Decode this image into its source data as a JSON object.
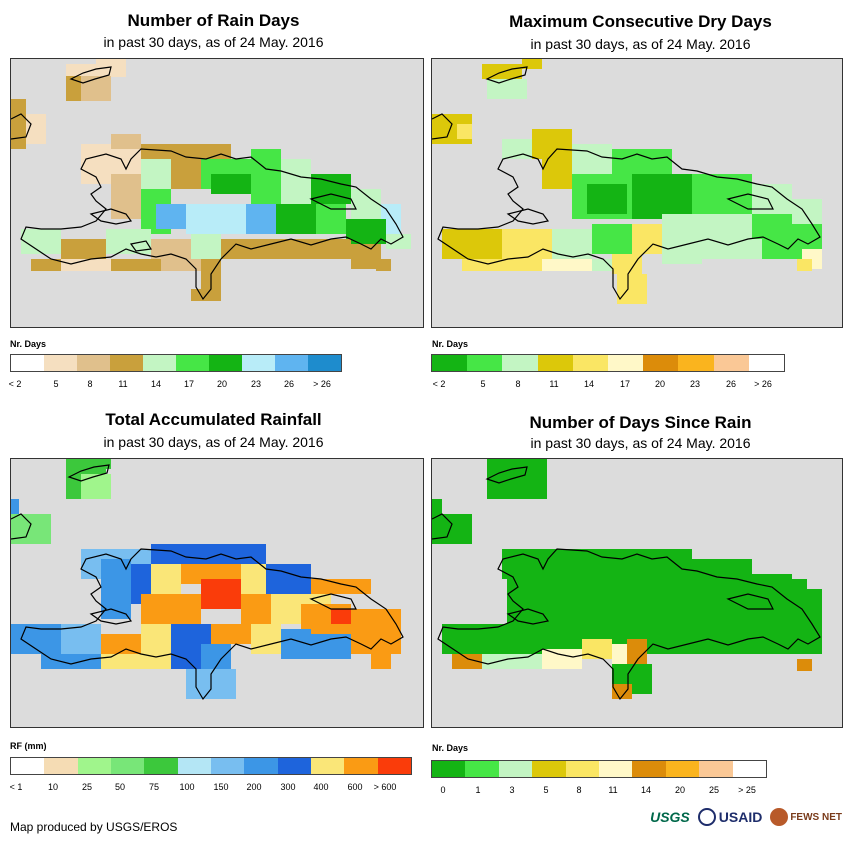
{
  "panels": [
    {
      "title": "Number of Rain Days",
      "subtitle": "in past 30 days, as of 24 May. 2016",
      "legend_title": "Nr. Days",
      "legend_labels": [
        "< 2",
        "5",
        "8",
        "11",
        "14",
        "17",
        "20",
        "23",
        "26",
        "> 26"
      ],
      "legend_colors": [
        "#ffffff",
        "#f5dfc0",
        "#e0c08c",
        "#c9a03c",
        "#c3f5c3",
        "#46e646",
        "#14b414",
        "#b8ecf8",
        "#5fb4f0",
        "#1e8ccd"
      ]
    },
    {
      "title": "Maximum Consecutive Dry Days",
      "subtitle": "in past 30 days, as of 24 May. 2016",
      "legend_title": "Nr. Days",
      "legend_labels": [
        "< 2",
        "5",
        "8",
        "11",
        "14",
        "17",
        "20",
        "23",
        "26",
        "> 26"
      ],
      "legend_colors": [
        "#14b414",
        "#46e646",
        "#c3f5c3",
        "#dcc80a",
        "#fae664",
        "#fff8c8",
        "#dc8c0a",
        "#fab41e",
        "#fac896",
        "#ffffff"
      ]
    },
    {
      "title": "Total Accumulated Rainfall",
      "subtitle": "in past 30 days, as of 24 May. 2016",
      "legend_title": "RF (mm)",
      "legend_labels": [
        "< 1",
        "10",
        "25",
        "50",
        "75",
        "100",
        "150",
        "200",
        "300",
        "400",
        "600",
        "> 600"
      ],
      "legend_colors": [
        "#ffffff",
        "#f5dcb4",
        "#a0f58c",
        "#78e678",
        "#3cc83c",
        "#b4e6f5",
        "#78bef0",
        "#3c96e6",
        "#1e64dc",
        "#fae678",
        "#fa9b14",
        "#fa3c0a"
      ]
    },
    {
      "title": "Number of Days Since Rain",
      "subtitle": "in past 30 days, as of 24 May. 2016",
      "legend_title": "Nr. Days",
      "legend_labels": [
        "0",
        "1",
        "3",
        "5",
        "8",
        "11",
        "14",
        "20",
        "25",
        "> 25"
      ],
      "legend_colors": [
        "#14b414",
        "#46e646",
        "#c3f5c3",
        "#dcc80a",
        "#fae664",
        "#fff8c8",
        "#dc8c0a",
        "#fab41e",
        "#fac896",
        "#ffffff"
      ]
    }
  ],
  "credit": "Map produced by USGS/EROS",
  "logos": {
    "usgs": "USGS",
    "usaid": "USAID",
    "fews": "FEWS NET"
  }
}
